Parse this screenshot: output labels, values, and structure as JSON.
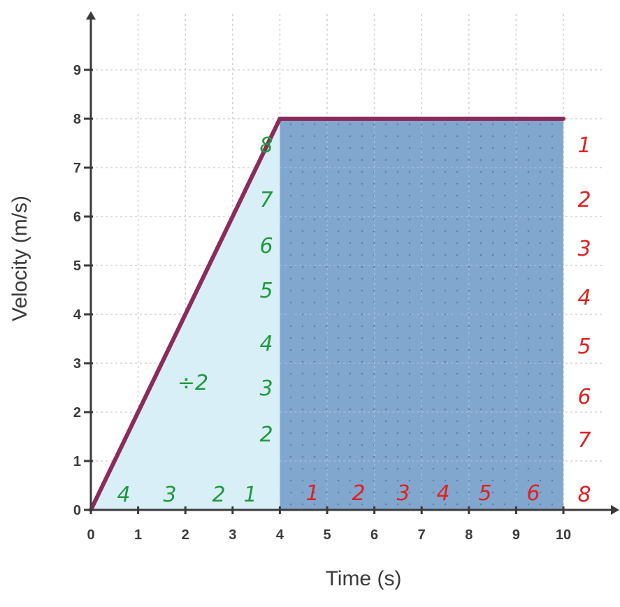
{
  "chart_data": {
    "type": "line",
    "xlabel": "Time (s)",
    "ylabel": "Velocity (m/s)",
    "xlim": [
      0,
      10
    ],
    "ylim": [
      0,
      9
    ],
    "x_ticks": [
      "0",
      "1",
      "2",
      "3",
      "4",
      "5",
      "6",
      "7",
      "8",
      "9",
      "10"
    ],
    "y_ticks": [
      "0",
      "1",
      "2",
      "3",
      "4",
      "5",
      "6",
      "7",
      "8",
      "9"
    ],
    "grid": true,
    "series": [
      {
        "x": [
          0,
          4,
          10
        ],
        "y": [
          0,
          8,
          8
        ]
      }
    ],
    "shaded_regions": [
      {
        "shape": "triangle",
        "x": [
          0,
          4
        ],
        "y": [
          0,
          8
        ],
        "color": "#d9eff8"
      },
      {
        "shape": "rectangle",
        "x": [
          4,
          10
        ],
        "y": [
          0,
          8
        ],
        "color": "#82a7cf"
      }
    ],
    "colors": {
      "line": "#8a2c59",
      "axis": "#3a3a3a",
      "grid": "#d4d4d4",
      "green_ink": "#1e9a3c",
      "red_ink": "#e02020"
    },
    "annotations": {
      "triangle_base_counts": [
        "4",
        "3",
        "2",
        "1"
      ],
      "triangle_height_counts": [
        "8",
        "7",
        "6",
        "5",
        "4",
        "3",
        "2"
      ],
      "divide_note": "÷2",
      "rect_width_counts": [
        "1",
        "2",
        "3",
        "4",
        "5",
        "6"
      ],
      "rect_height_counts": [
        "1",
        "2",
        "3",
        "4",
        "5",
        "6",
        "7",
        "8"
      ]
    }
  }
}
